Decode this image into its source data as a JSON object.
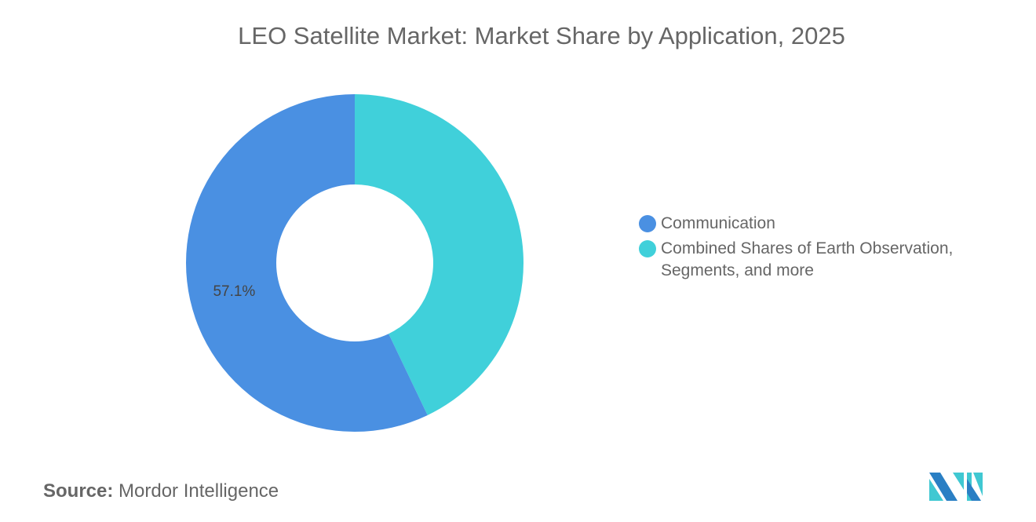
{
  "chart_data": {
    "type": "pie",
    "title": "LEO Satellite Market: Market Share by Application, 2025",
    "categories": [
      "Communication",
      "Combined Shares of Earth Observation, Segments, and more"
    ],
    "values": [
      57.1,
      42.9
    ],
    "data_labels": [
      "57.1%",
      ""
    ],
    "colors": [
      "#4a90e2",
      "#40d0da"
    ],
    "donut": true,
    "legend_position": "right"
  },
  "legend": [
    {
      "label": "Communication"
    },
    {
      "label": "Combined Shares of Earth Observation, Segments, and more"
    }
  ],
  "source": {
    "prefix": "Source:",
    "text": "Mordor Intelligence"
  }
}
